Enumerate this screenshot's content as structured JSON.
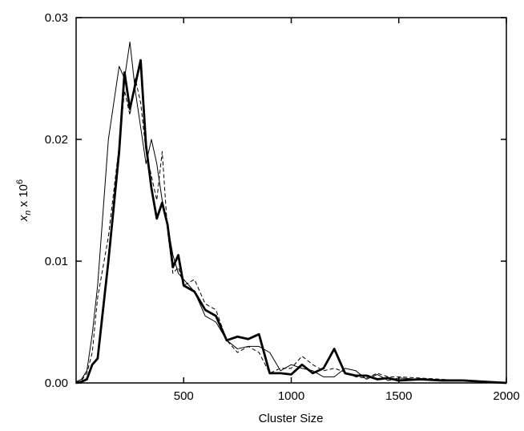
{
  "chart_data": {
    "type": "line",
    "x_label": "Cluster Size",
    "y_label": {
      "base": "x",
      "sub": "n",
      "mid": " x 10",
      "sup": "6"
    },
    "x": [
      0,
      25,
      50,
      75,
      100,
      150,
      200,
      225,
      250,
      275,
      300,
      325,
      350,
      375,
      400,
      425,
      450,
      475,
      500,
      550,
      600,
      650,
      700,
      750,
      800,
      850,
      900,
      950,
      1000,
      1050,
      1100,
      1150,
      1200,
      1250,
      1300,
      1350,
      1400,
      1450,
      1500,
      1600,
      1700,
      1800,
      1900,
      2000
    ],
    "series": [
      {
        "color": "#000000",
        "width": 1,
        "dash": false,
        "values": [
          0.0001,
          0.0003,
          0.001,
          0.004,
          0.008,
          0.02,
          0.026,
          0.025,
          0.028,
          0.024,
          0.021,
          0.018,
          0.02,
          0.018,
          0.015,
          0.013,
          0.0105,
          0.009,
          0.0085,
          0.0075,
          0.0055,
          0.005,
          0.0035,
          0.0028,
          0.003,
          0.003,
          0.0025,
          0.001,
          0.0015,
          0.0012,
          0.001,
          0.0005,
          0.0005,
          0.0012,
          0.001,
          0.0003,
          0.0007,
          0.0002,
          0.0004,
          0.0003,
          0.0002,
          0.0002,
          0.0001,
          0
        ]
      },
      {
        "color": "#000000",
        "width": 1,
        "dash": true,
        "values": [
          0,
          0.0002,
          0.0008,
          0.0025,
          0.007,
          0.012,
          0.0195,
          0.024,
          0.022,
          0.025,
          0.023,
          0.019,
          0.017,
          0.015,
          0.019,
          0.0125,
          0.009,
          0.0095,
          0.008,
          0.0085,
          0.0065,
          0.006,
          0.0035,
          0.0025,
          0.003,
          0.0025,
          0.0008,
          0.0012,
          0.0012,
          0.0022,
          0.0015,
          0.001,
          0.0012,
          0.0009,
          0.0005,
          0.0004,
          0.0008,
          0.0005,
          0.0005,
          0.0004,
          0.0003,
          0.0002,
          0.0001,
          0
        ]
      },
      {
        "color": "#000000",
        "width": 2.8,
        "dash": false,
        "values": [
          0,
          0.0001,
          0.0003,
          0.0015,
          0.002,
          0.01,
          0.019,
          0.0255,
          0.0225,
          0.0245,
          0.0265,
          0.0195,
          0.016,
          0.0135,
          0.0148,
          0.013,
          0.0095,
          0.0105,
          0.008,
          0.0075,
          0.006,
          0.0055,
          0.0035,
          0.0038,
          0.0036,
          0.004,
          0.0008,
          0.0008,
          0.0007,
          0.0015,
          0.0008,
          0.0012,
          0.0028,
          0.0008,
          0.0006,
          0.0006,
          0.0003,
          0.0004,
          0.0002,
          0.0003,
          0.0002,
          0.0002,
          0.0001,
          0
        ]
      }
    ],
    "xlim": [
      0,
      2000
    ],
    "xticks": [
      500,
      1000,
      1500,
      2000
    ],
    "ylim": [
      0,
      0.03
    ],
    "yticks": [
      {
        "value": 0,
        "label": "0.00"
      },
      0.01,
      0.02,
      0.03
    ]
  }
}
